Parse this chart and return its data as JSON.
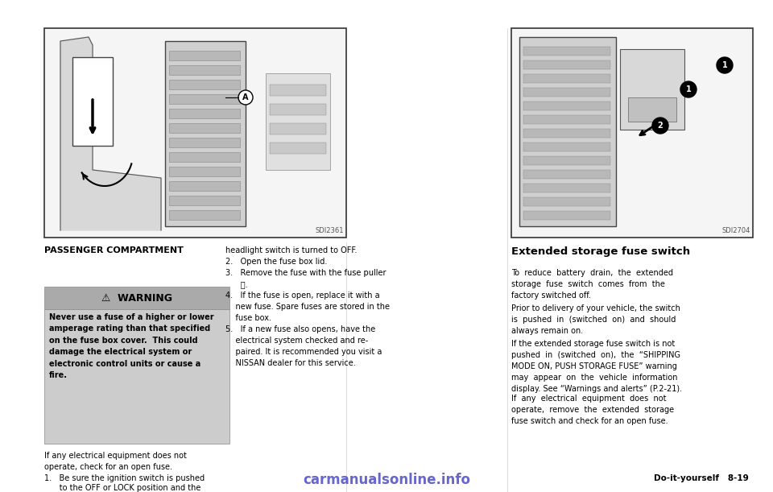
{
  "bg_color": "#ffffff",
  "left_image_label": "SDI2361",
  "right_image_label": "SDI2704",
  "section_title": "PASSENGER COMPARTMENT",
  "warning_header": "WARNING",
  "warning_text_lines": [
    "Never use a fuse of a higher or lower",
    "amperage rating than that specified",
    "on the fuse box cover.  This could",
    "damage the electrical system or",
    "electronic control units or cause a",
    "fire."
  ],
  "body_text_left_lines": [
    "If any electrical equipment does not",
    "operate, check for an open fuse."
  ],
  "body_list_left": [
    "Be sure the ignition switch is pushed",
    "    to the OFF or LOCK position and the"
  ],
  "body_text_middle_lines": [
    "headlight switch is turned to OFF.",
    "Open the fuse box lid.",
    "Remove the fuse with the fuse puller",
    "⒣.",
    "If the fuse is open, replace it with a",
    "    new fuse. Spare fuses are stored in the",
    "    fuse box.",
    "If a new fuse also opens, have the",
    "    electrical system checked and re-",
    "    paired. It is recommended you visit a",
    "    NISSAN dealer for this service."
  ],
  "right_section_title": "Extended storage fuse switch",
  "right_body_paragraphs": [
    "To  reduce  battery  drain,  the  extended\nstorage  fuse  switch  comes  from  the\nfactory switched off.",
    "Prior to delivery of your vehicle, the switch\nis  pushed  in  (switched  on)  and  should\nalways remain on.",
    "If the extended storage fuse switch is not\npushed  in  (switched  on),  the  “SHIPPING\nMODE ON, PUSH STORAGE FUSE” warning\nmay  appear  on  the  vehicle  information\ndisplay. See “Warnings and alerts” (P.2-21).",
    "If  any  electrical  equipment  does  not\noperate,  remove  the  extended  storage\nfuse switch and check for an open fuse."
  ],
  "footer_bold": "Do-it-yourself",
  "footer_page": "8-19",
  "watermark": "carmanualsonline.info",
  "text_color": "#000000",
  "warn_header_bg": "#aaaaaa",
  "warn_body_bg": "#cccccc",
  "image_bg": "#e8e8e8",
  "image_border": "#555555"
}
